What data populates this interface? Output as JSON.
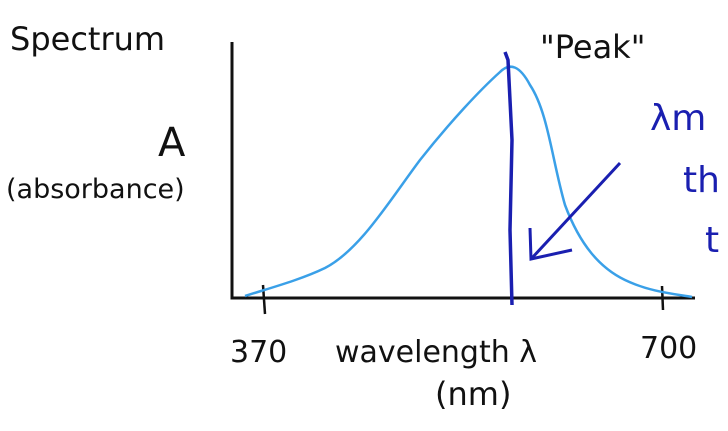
{
  "title": "Spectrum",
  "annotation": "\"Peak\"",
  "y_axis": {
    "symbol": "A",
    "label": "(absorbance)"
  },
  "x_axis": {
    "start": "370",
    "label": "wavelength λ",
    "end": "700",
    "unit": "(nm)"
  },
  "note": [
    "λm",
    "th",
    "t"
  ]
}
